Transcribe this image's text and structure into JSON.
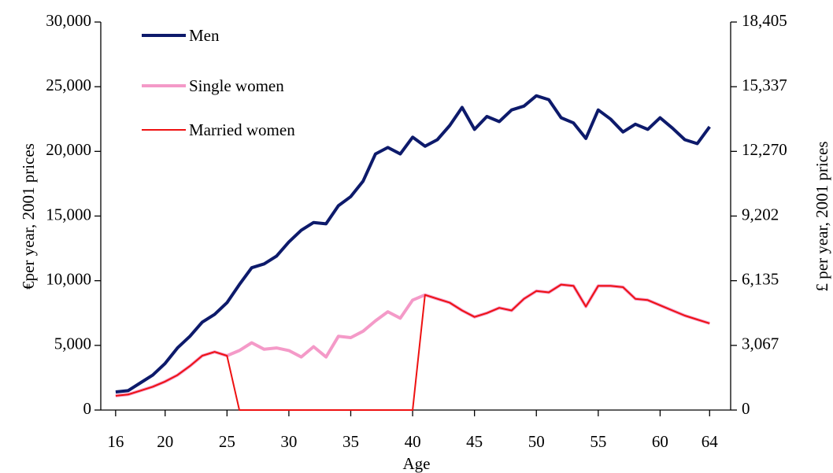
{
  "chart_data": {
    "type": "line",
    "x_label": "Age",
    "y_label": "€per year, 2001 prices",
    "y2_label": "£ per year, 2001 prices",
    "x": [
      16,
      17,
      18,
      19,
      20,
      21,
      22,
      23,
      24,
      25,
      26,
      27,
      28,
      29,
      30,
      31,
      32,
      33,
      34,
      35,
      36,
      37,
      38,
      39,
      40,
      41,
      42,
      43,
      44,
      45,
      46,
      47,
      48,
      49,
      50,
      51,
      52,
      53,
      54,
      55,
      56,
      57,
      58,
      59,
      60,
      61,
      62,
      63,
      64
    ],
    "xlim": [
      14.8,
      65.7
    ],
    "xticks": [
      16,
      20,
      25,
      30,
      35,
      40,
      45,
      50,
      55,
      60,
      64
    ],
    "ylim": [
      0,
      30000
    ],
    "yticks": [
      0,
      {
        "value": 5000,
        "label": "5,000"
      },
      {
        "value": 10000,
        "label": "10,000"
      },
      {
        "value": 15000,
        "label": "15,000"
      },
      {
        "value": 20000,
        "label": "20,000"
      },
      {
        "value": 25000,
        "label": "25,000"
      },
      {
        "value": 30000,
        "label": "30,000"
      }
    ],
    "y2lim": [
      0,
      18405
    ],
    "y2ticks": [
      0,
      {
        "value": 3067,
        "label": "3,067"
      },
      {
        "value": 6135,
        "label": "6,135"
      },
      {
        "value": 9202,
        "label": "9,202"
      },
      {
        "value": 12270,
        "label": "12,270"
      },
      {
        "value": 15337,
        "label": "15,337"
      },
      {
        "value": 18405,
        "label": "18,405"
      }
    ],
    "legend": "upper left",
    "series": [
      {
        "name": "Men",
        "color": "#0d1a6b",
        "width": 4,
        "values": [
          1400,
          1500,
          2100,
          2700,
          3600,
          4800,
          5700,
          6800,
          7400,
          8300,
          9700,
          11000,
          11300,
          11900,
          13000,
          13900,
          14500,
          14400,
          15800,
          16500,
          17700,
          19800,
          20300,
          19800,
          21100,
          20400,
          20900,
          22000,
          23400,
          21700,
          22700,
          22300,
          23200,
          23500,
          24300,
          24000,
          22600,
          22200,
          21000,
          23200,
          22500,
          21500,
          22100,
          21700,
          22600,
          21800,
          20900,
          20600,
          21900
        ]
      },
      {
        "name": "Single women",
        "color": "#f49ac8",
        "width": 4,
        "values": [
          1100,
          1200,
          1500,
          1800,
          2200,
          2700,
          3400,
          4200,
          4500,
          4200,
          4600,
          5200,
          4700,
          4800,
          4600,
          4100,
          4900,
          4100,
          5700,
          5600,
          6100,
          6900,
          7600,
          7100,
          8500,
          8900,
          8600,
          8300,
          7700,
          7200,
          7500,
          7900,
          7700,
          8600,
          9200,
          9100,
          9700,
          9600,
          8000,
          9600,
          9600,
          9500,
          8600,
          8500,
          8100,
          7700,
          7300,
          7000,
          6700
        ]
      },
      {
        "name": "Married women",
        "color": "#ee1111",
        "width": 2,
        "values": [
          1100,
          1200,
          1500,
          1800,
          2200,
          2700,
          3400,
          4200,
          4500,
          4200,
          0,
          0,
          0,
          0,
          0,
          0,
          0,
          0,
          0,
          0,
          0,
          0,
          0,
          0,
          0,
          8900,
          8600,
          8300,
          7700,
          7200,
          7500,
          7900,
          7700,
          8600,
          9200,
          9100,
          9700,
          9600,
          8000,
          9600,
          9600,
          9500,
          8600,
          8500,
          8100,
          7700,
          7300,
          7000,
          6700
        ]
      }
    ]
  }
}
